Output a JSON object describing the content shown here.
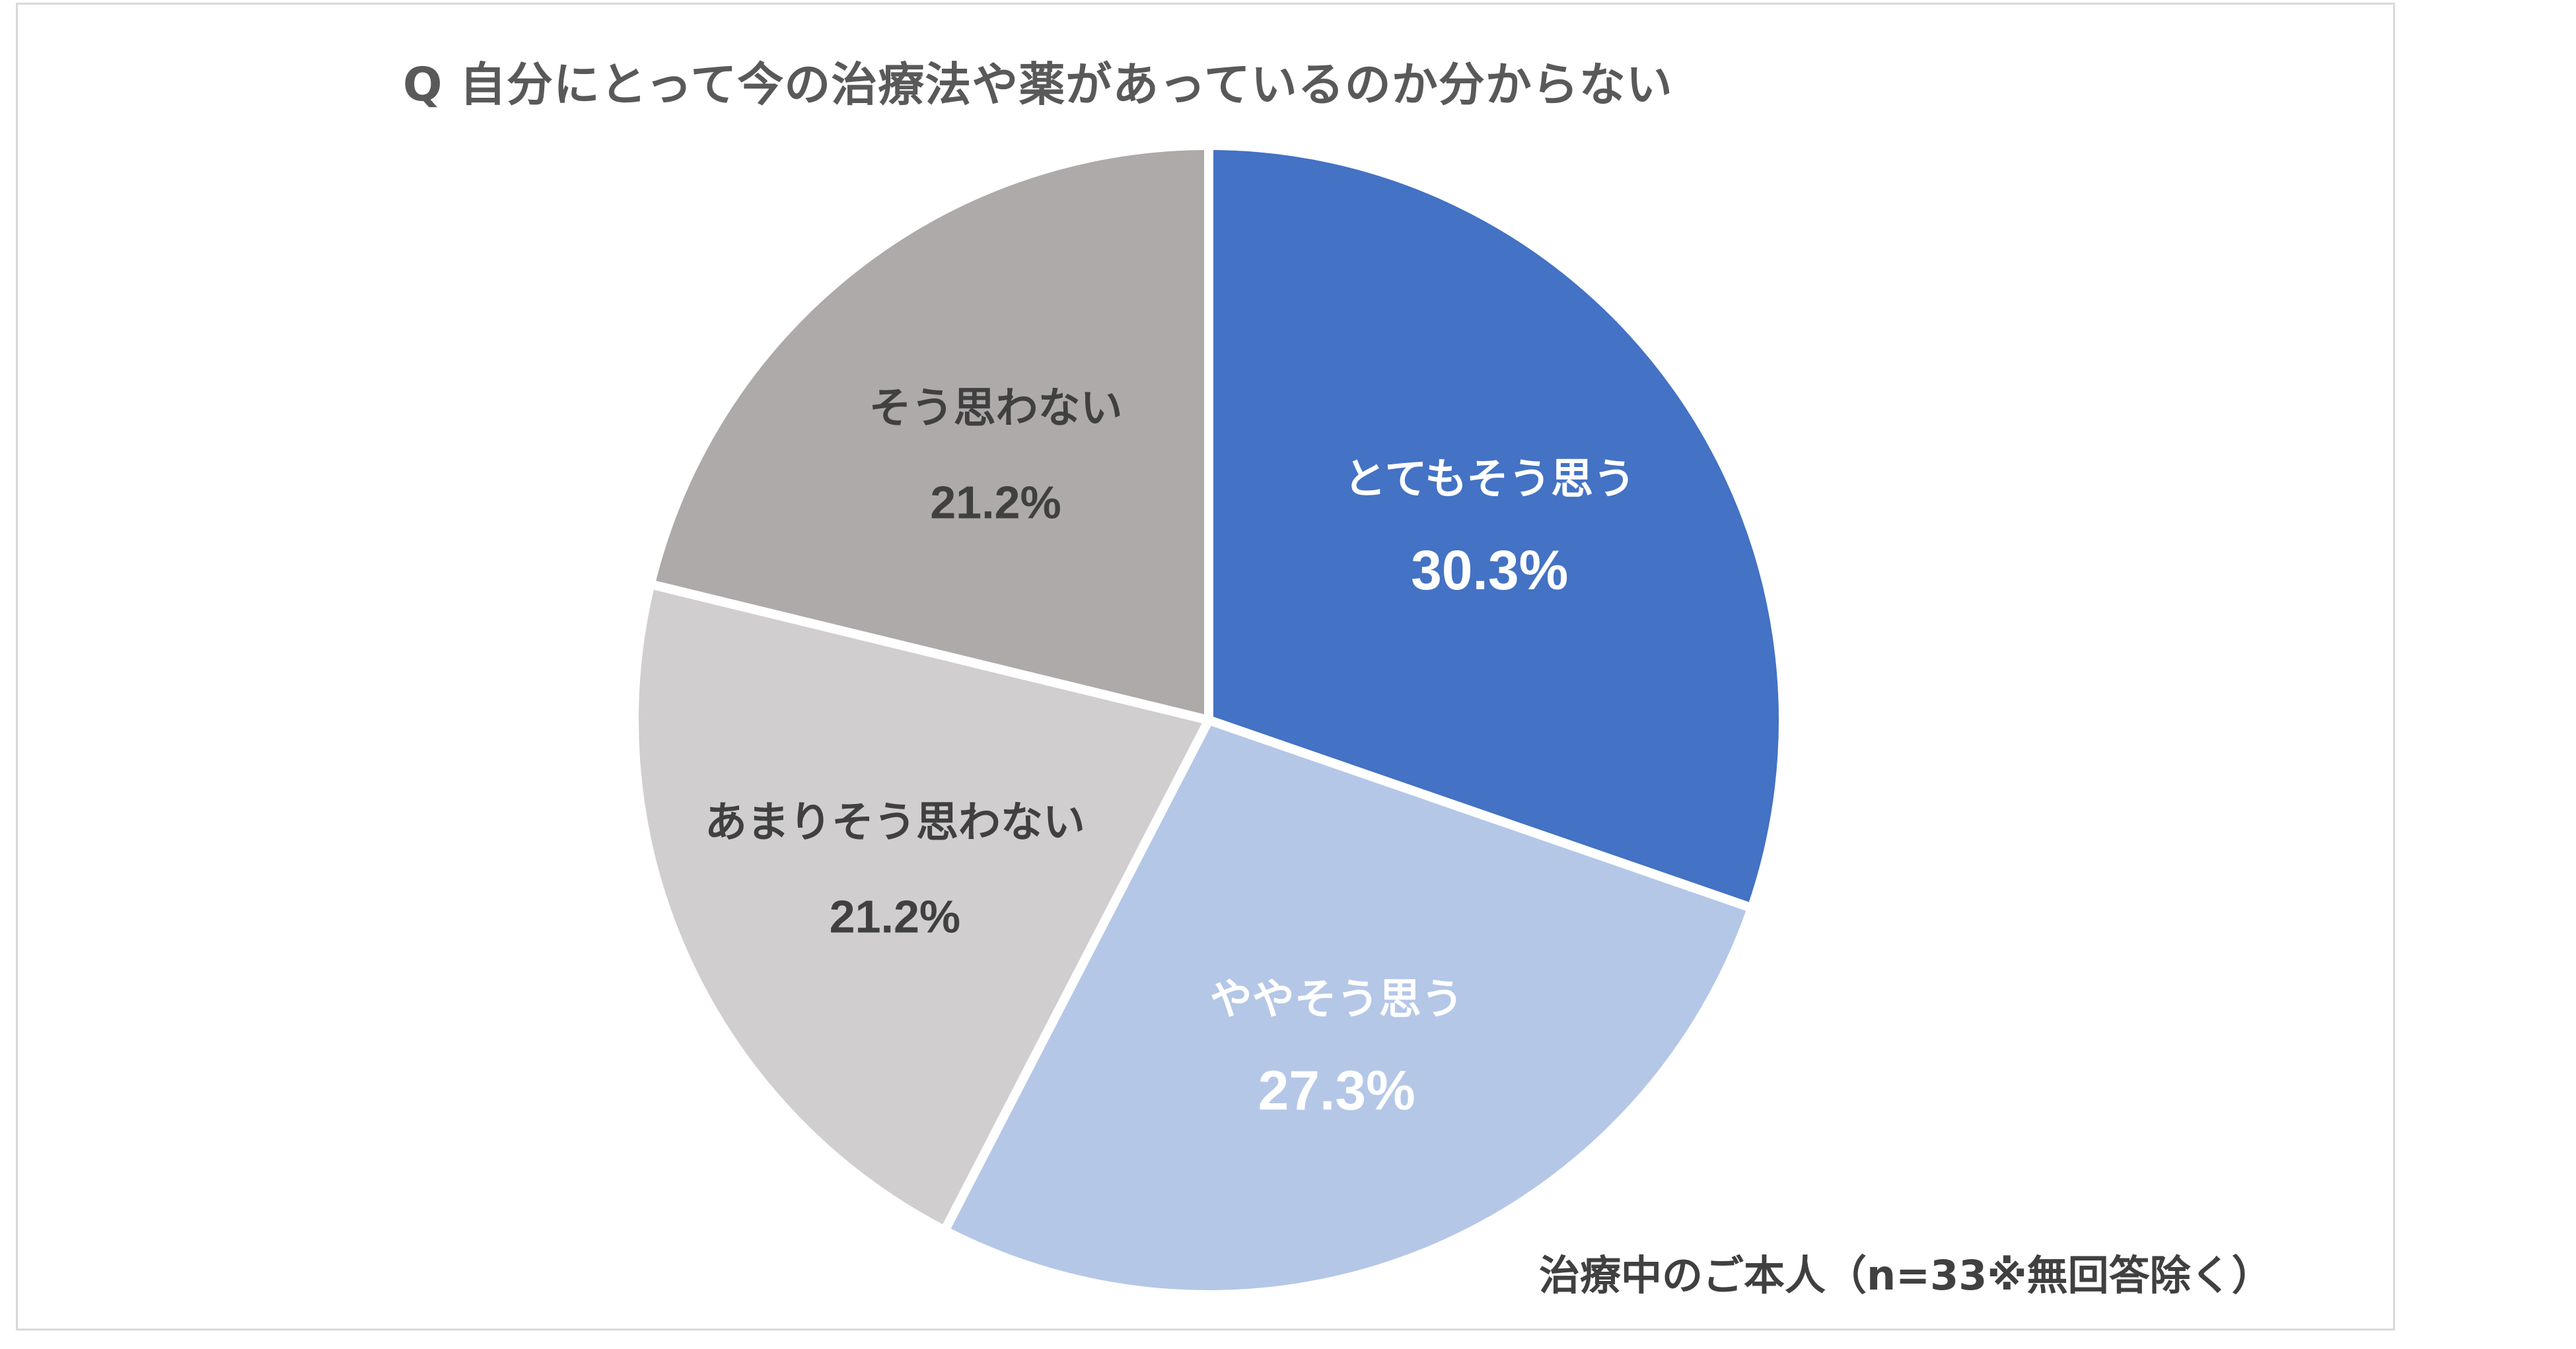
{
  "chart_data": {
    "type": "pie",
    "title": "Q 自分にとって今の治療法や薬があっているのか分からない",
    "note": "治療中のご本人（n=33※無回答除く）",
    "slices": [
      {
        "label": "とてもそう思う",
        "value": 30.3,
        "value_label": "30.3%",
        "color": "#4472c4",
        "text_color": "#ffffff"
      },
      {
        "label": "ややそう思う",
        "value": 27.3,
        "value_label": "27.3%",
        "color": "#b4c7e7",
        "text_color": "#ffffff"
      },
      {
        "label": "あまりそう思わない",
        "value": 21.2,
        "value_label": "21.2%",
        "color": "#d0cece",
        "text_color": "#404040"
      },
      {
        "label": "そう思わない",
        "value": 21.2,
        "value_label": "21.2%",
        "color": "#aeaaaa",
        "text_color": "#404040"
      }
    ],
    "start_angle": "12 o'clock",
    "direction": "clockwise",
    "legend": "none"
  }
}
